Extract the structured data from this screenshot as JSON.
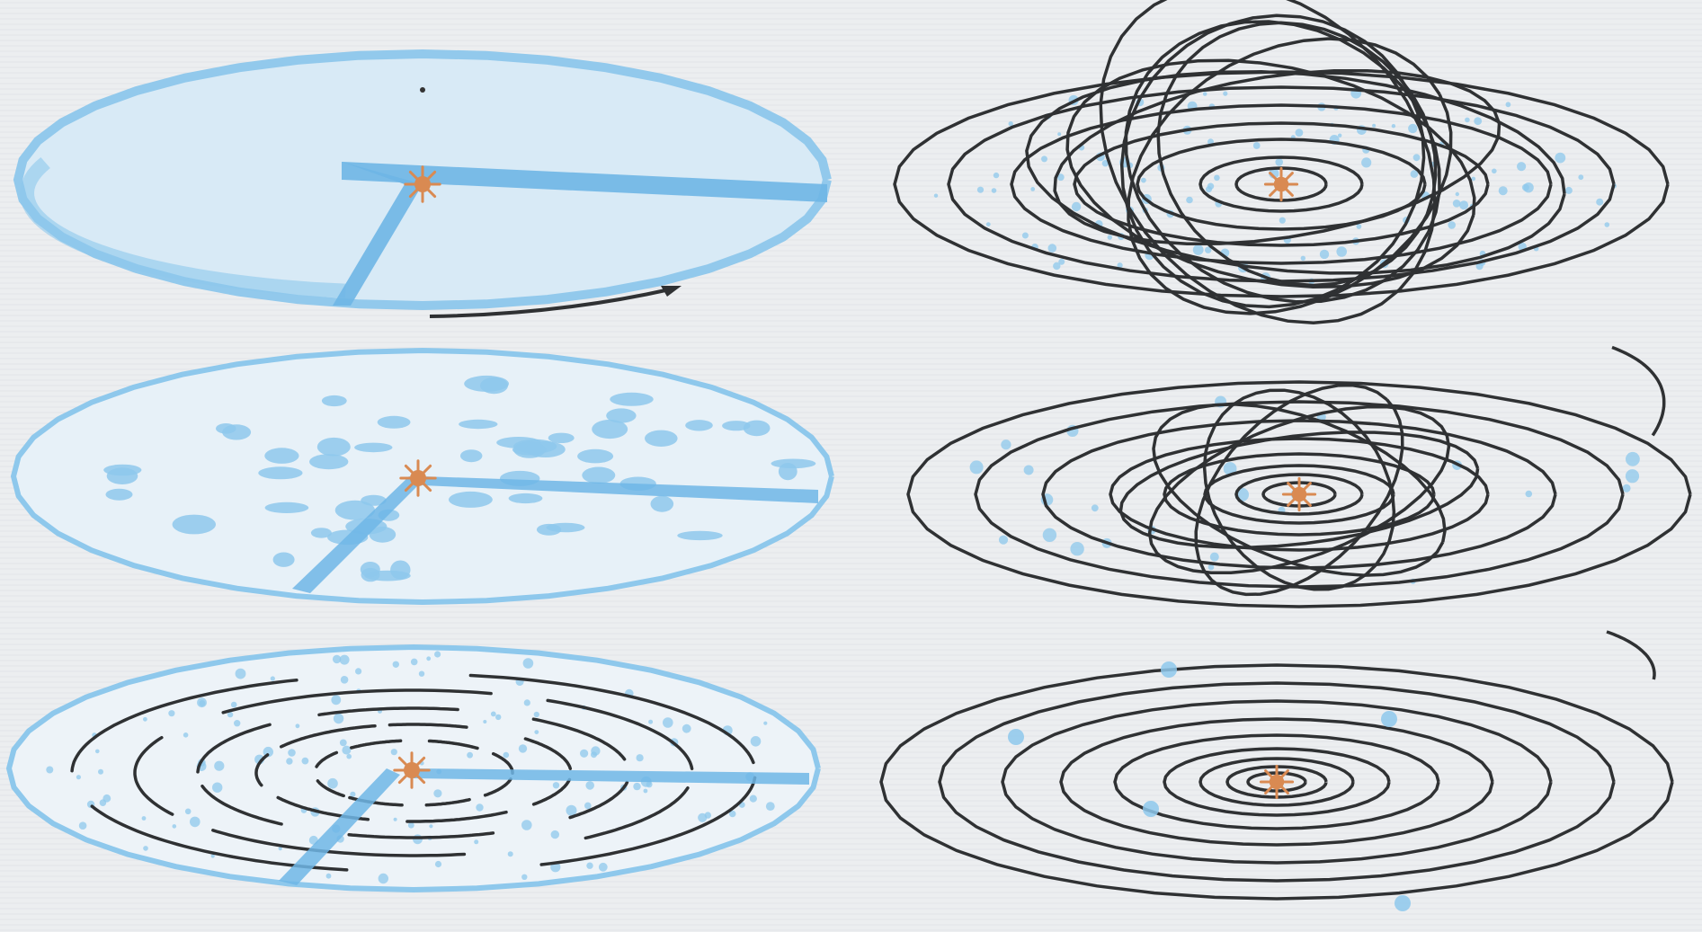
{
  "colors": {
    "background": "#eceef0",
    "disk_blue": "#8ec8ec",
    "disk_blue_dark": "#6fb6e6",
    "orbit_dark": "#2f3133",
    "star_orange": "#d98a52"
  },
  "panels": [
    {
      "id": "stage-1",
      "stage": "gas-disk",
      "rotation_arrow": true
    },
    {
      "id": "stage-2",
      "stage": "clumping-disk",
      "rotation_arrow": false
    },
    {
      "id": "stage-3",
      "stage": "planetesimal-rings",
      "rotation_arrow": false
    },
    {
      "id": "stage-4",
      "stage": "chaotic-orbits",
      "rotation_arrow": false
    },
    {
      "id": "stage-5",
      "stage": "settling-orbits",
      "rotation_arrow": false
    },
    {
      "id": "stage-6",
      "stage": "ordered-orbits",
      "rotation_arrow": false
    }
  ]
}
